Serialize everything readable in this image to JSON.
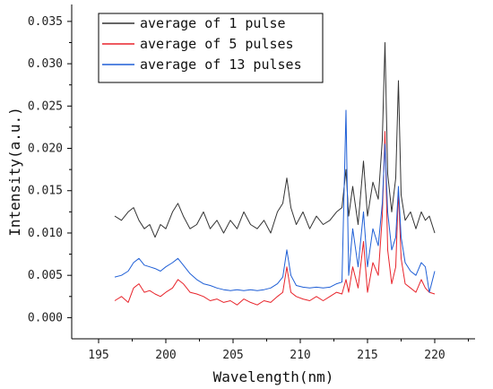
{
  "chart_data": {
    "type": "line",
    "title": "",
    "xlabel": "Wavelength(nm)",
    "ylabel": "Intensity(a.u.)",
    "xlim": [
      193,
      223
    ],
    "ylim": [
      -0.0025,
      0.037
    ],
    "xticks": [
      195,
      200,
      205,
      210,
      215,
      220
    ],
    "yticks": [
      0.0,
      0.005,
      0.01,
      0.015,
      0.02,
      0.025,
      0.03,
      0.035
    ],
    "xtick_labels": [
      "195",
      "200",
      "205",
      "210",
      "215",
      "220"
    ],
    "ytick_labels": [
      "0.000",
      "0.005",
      "0.010",
      "0.015",
      "0.020",
      "0.025",
      "0.030",
      "0.035"
    ],
    "grid": false,
    "legend_position": "top-left",
    "series": [
      {
        "name": "average of 1 pulse",
        "color": "#333333",
        "x": [
          196.2,
          196.7,
          197.2,
          197.6,
          198.0,
          198.4,
          198.8,
          199.2,
          199.6,
          200.0,
          200.5,
          200.9,
          201.3,
          201.8,
          202.3,
          202.8,
          203.3,
          203.8,
          204.3,
          204.8,
          205.3,
          205.8,
          206.3,
          206.8,
          207.3,
          207.8,
          208.3,
          208.7,
          209.0,
          209.3,
          209.7,
          210.2,
          210.7,
          211.2,
          211.7,
          212.2,
          212.7,
          213.1,
          213.4,
          213.6,
          213.9,
          214.3,
          214.7,
          215.0,
          215.4,
          215.8,
          216.1,
          216.3,
          216.5,
          216.8,
          217.1,
          217.3,
          217.5,
          217.8,
          218.2,
          218.6,
          219.0,
          219.3,
          219.6,
          220.0
        ],
        "values": [
          0.012,
          0.0115,
          0.0125,
          0.013,
          0.0115,
          0.0105,
          0.011,
          0.0095,
          0.011,
          0.0105,
          0.0125,
          0.0135,
          0.012,
          0.0105,
          0.011,
          0.0125,
          0.0105,
          0.0115,
          0.01,
          0.0115,
          0.0105,
          0.0125,
          0.011,
          0.0105,
          0.0115,
          0.01,
          0.0125,
          0.0135,
          0.0165,
          0.013,
          0.011,
          0.0125,
          0.0105,
          0.012,
          0.011,
          0.0115,
          0.0125,
          0.013,
          0.0175,
          0.012,
          0.0155,
          0.011,
          0.0185,
          0.012,
          0.016,
          0.014,
          0.021,
          0.0325,
          0.017,
          0.0125,
          0.0165,
          0.028,
          0.0145,
          0.0115,
          0.0125,
          0.0105,
          0.0125,
          0.0115,
          0.012,
          0.01
        ]
      },
      {
        "name": "average of 5 pulses",
        "color": "#e8242b",
        "x": [
          196.2,
          196.7,
          197.2,
          197.6,
          198.0,
          198.4,
          198.8,
          199.2,
          199.6,
          200.0,
          200.5,
          200.9,
          201.3,
          201.8,
          202.3,
          202.8,
          203.3,
          203.8,
          204.3,
          204.8,
          205.3,
          205.8,
          206.3,
          206.8,
          207.3,
          207.8,
          208.3,
          208.7,
          209.0,
          209.3,
          209.7,
          210.2,
          210.7,
          211.2,
          211.7,
          212.2,
          212.7,
          213.1,
          213.4,
          213.6,
          213.9,
          214.3,
          214.7,
          215.0,
          215.4,
          215.8,
          216.1,
          216.3,
          216.5,
          216.8,
          217.1,
          217.3,
          217.5,
          217.8,
          218.2,
          218.6,
          219.0,
          219.3,
          219.6,
          220.0
        ],
        "values": [
          0.002,
          0.0025,
          0.0018,
          0.0035,
          0.004,
          0.003,
          0.0032,
          0.0028,
          0.0025,
          0.003,
          0.0035,
          0.0045,
          0.004,
          0.003,
          0.0028,
          0.0025,
          0.002,
          0.0022,
          0.0018,
          0.002,
          0.0015,
          0.0022,
          0.0018,
          0.0015,
          0.002,
          0.0018,
          0.0025,
          0.003,
          0.006,
          0.003,
          0.0025,
          0.0022,
          0.002,
          0.0025,
          0.002,
          0.0025,
          0.003,
          0.0028,
          0.0045,
          0.003,
          0.006,
          0.0035,
          0.009,
          0.003,
          0.0065,
          0.005,
          0.012,
          0.022,
          0.008,
          0.004,
          0.006,
          0.015,
          0.007,
          0.004,
          0.0035,
          0.003,
          0.0045,
          0.0035,
          0.003,
          0.0028
        ]
      },
      {
        "name": "average of 13 pulses",
        "color": "#1f5fd6",
        "x": [
          196.2,
          196.7,
          197.2,
          197.6,
          198.0,
          198.4,
          198.8,
          199.2,
          199.6,
          200.0,
          200.5,
          200.9,
          201.3,
          201.8,
          202.3,
          202.8,
          203.3,
          203.8,
          204.3,
          204.8,
          205.3,
          205.8,
          206.3,
          206.8,
          207.3,
          207.8,
          208.3,
          208.7,
          209.0,
          209.3,
          209.7,
          210.2,
          210.7,
          211.2,
          211.7,
          212.2,
          212.7,
          213.1,
          213.4,
          213.6,
          213.9,
          214.3,
          214.7,
          215.0,
          215.4,
          215.8,
          216.1,
          216.3,
          216.5,
          216.8,
          217.1,
          217.3,
          217.5,
          217.8,
          218.2,
          218.6,
          219.0,
          219.3,
          219.6,
          220.0
        ],
        "values": [
          0.0048,
          0.005,
          0.0055,
          0.0065,
          0.007,
          0.0062,
          0.006,
          0.0058,
          0.0055,
          0.006,
          0.0065,
          0.007,
          0.0062,
          0.0052,
          0.0045,
          0.004,
          0.0038,
          0.0035,
          0.0033,
          0.0032,
          0.0033,
          0.0032,
          0.0033,
          0.0032,
          0.0033,
          0.0035,
          0.004,
          0.0048,
          0.008,
          0.005,
          0.0038,
          0.0036,
          0.0035,
          0.0036,
          0.0035,
          0.0036,
          0.004,
          0.0042,
          0.0245,
          0.005,
          0.0105,
          0.006,
          0.0125,
          0.006,
          0.0105,
          0.0085,
          0.0135,
          0.0205,
          0.0125,
          0.008,
          0.0095,
          0.0155,
          0.0095,
          0.0065,
          0.0055,
          0.005,
          0.0065,
          0.006,
          0.003,
          0.0055
        ]
      }
    ]
  }
}
